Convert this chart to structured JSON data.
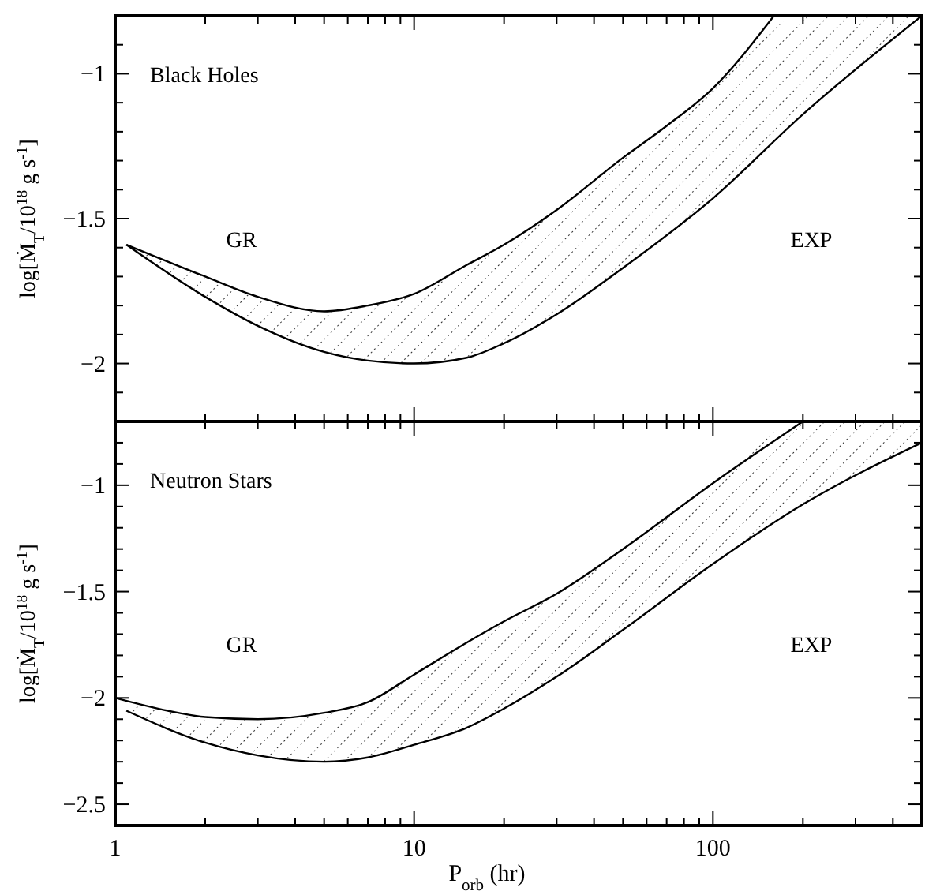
{
  "chart_data": [
    {
      "type": "line",
      "title": "Black Holes",
      "ylabel": "log[Ṁ$_{T}$/10$^{18}$ g s$^{-1}$]",
      "log": "x",
      "xlim": [
        1,
        500
      ],
      "ylim": [
        -2.2,
        -0.8
      ],
      "xticks": [
        1,
        {
          "value": 2,
          "label": null
        },
        {
          "value": 3,
          "label": null
        },
        {
          "value": 4,
          "label": null
        },
        {
          "value": 5,
          "label": null
        },
        {
          "value": 6,
          "label": null
        },
        {
          "value": 7,
          "label": null
        },
        {
          "value": 8,
          "label": null
        },
        {
          "value": 9,
          "label": null
        },
        10,
        {
          "value": 20,
          "label": null
        },
        {
          "value": 30,
          "label": null
        },
        {
          "value": 40,
          "label": null
        },
        {
          "value": 50,
          "label": null
        },
        {
          "value": 60,
          "label": null
        },
        {
          "value": 70,
          "label": null
        },
        {
          "value": 80,
          "label": null
        },
        {
          "value": 90,
          "label": null
        },
        100,
        {
          "value": 200,
          "label": null
        },
        {
          "value": 300,
          "label": null
        },
        {
          "value": 400,
          "label": null
        },
        {
          "value": 500,
          "label": null
        }
      ],
      "yticks": [
        {
          "value": -2.1,
          "label": null
        },
        -2,
        {
          "value": -1.9,
          "label": null
        },
        {
          "value": -1.8,
          "label": null
        },
        {
          "value": -1.7,
          "label": null
        },
        {
          "value": -1.6,
          "label": null
        },
        -1.5,
        {
          "value": -1.4,
          "label": null
        },
        {
          "value": -1.3,
          "label": null
        },
        {
          "value": -1.2,
          "label": null
        },
        {
          "value": -1.1,
          "label": null
        },
        -1,
        {
          "value": -0.9,
          "label": null
        }
      ],
      "tick_labels": "y",
      "line_style": "solid",
      "marker": "none",
      "annotations": [
        "GR",
        "EXP"
      ],
      "series": [
        {
          "color": "#000000",
          "x": [
            1.09,
            2,
            3,
            5,
            7,
            10,
            15,
            20,
            30,
            50,
            70,
            100,
            160
          ],
          "values": [
            -1.59,
            -1.7,
            -1.77,
            -1.82,
            -1.8,
            -1.76,
            -1.66,
            -1.59,
            -1.47,
            -1.29,
            -1.18,
            -1.05,
            -0.8
          ]
        },
        {
          "color": "#000000",
          "x": [
            1.09,
            2,
            3,
            5,
            7,
            10,
            15,
            20,
            30,
            50,
            100,
            200,
            500
          ],
          "values": [
            -1.59,
            -1.77,
            -1.87,
            -1.96,
            -1.99,
            -2.0,
            -1.98,
            -1.93,
            -1.83,
            -1.67,
            -1.43,
            -1.14,
            -0.8
          ],
          "lower": [
            -1.59,
            -1.77,
            -1.87,
            -1.96,
            -1.99,
            -2.0,
            -1.98,
            -1.93,
            -1.83,
            -1.67,
            -1.43,
            -1.14,
            -0.8
          ],
          "upper": [
            -1.59,
            -1.7,
            -1.77,
            -1.82,
            -1.8,
            -1.76,
            -1.66,
            -1.59,
            -1.47,
            -1.29,
            -1.05,
            -0.8,
            -0.8
          ]
        }
      ]
    },
    {
      "type": "line",
      "title": "Neutron Stars",
      "xlabel": "P$_{orb}$ (hr)",
      "ylabel": "log[Ṁ$_{T}$/10$^{18}$ g s$^{-1}$]",
      "log": "x",
      "xlim": [
        1,
        500
      ],
      "ylim": [
        -2.6,
        -0.7
      ],
      "xticks": [
        1,
        {
          "value": 2,
          "label": null
        },
        {
          "value": 3,
          "label": null
        },
        {
          "value": 4,
          "label": null
        },
        {
          "value": 5,
          "label": null
        },
        {
          "value": 6,
          "label": null
        },
        {
          "value": 7,
          "label": null
        },
        {
          "value": 8,
          "label": null
        },
        {
          "value": 9,
          "label": null
        },
        10,
        {
          "value": 20,
          "label": null
        },
        {
          "value": 30,
          "label": null
        },
        {
          "value": 40,
          "label": null
        },
        {
          "value": 50,
          "label": null
        },
        {
          "value": 60,
          "label": null
        },
        {
          "value": 70,
          "label": null
        },
        {
          "value": 80,
          "label": null
        },
        {
          "value": 90,
          "label": null
        },
        100,
        {
          "value": 200,
          "label": null
        },
        {
          "value": 300,
          "label": null
        },
        {
          "value": 400,
          "label": null
        },
        {
          "value": 500,
          "label": null
        }
      ],
      "yticks": [
        -2.5,
        {
          "value": -2.4,
          "label": null
        },
        {
          "value": -2.3,
          "label": null
        },
        {
          "value": -2.2,
          "label": null
        },
        {
          "value": -2.1,
          "label": null
        },
        -2,
        {
          "value": -1.9,
          "label": null
        },
        {
          "value": -1.8,
          "label": null
        },
        {
          "value": -1.7,
          "label": null
        },
        {
          "value": -1.6,
          "label": null
        },
        -1.5,
        {
          "value": -1.4,
          "label": null
        },
        {
          "value": -1.3,
          "label": null
        },
        {
          "value": -1.2,
          "label": null
        },
        {
          "value": -1.1,
          "label": null
        },
        -1,
        {
          "value": -0.9,
          "label": null
        },
        {
          "value": -0.8,
          "label": null
        }
      ],
      "line_style": "solid",
      "marker": "none",
      "annotations": [
        "GR",
        "EXP"
      ],
      "series": [
        {
          "color": "#000000",
          "x": [
            1.0,
            1.5,
            2,
            3,
            5,
            7,
            10,
            15,
            20,
            30,
            50,
            100,
            200
          ],
          "values": [
            -2.0,
            -2.06,
            -2.09,
            -2.1,
            -2.07,
            -2.02,
            -1.89,
            -1.74,
            -1.64,
            -1.51,
            -1.3,
            -0.99,
            -0.7
          ]
        },
        {
          "color": "#000000",
          "x": [
            1.09,
            2,
            3,
            5,
            7,
            10,
            15,
            20,
            30,
            50,
            100,
            200,
            500
          ],
          "values": [
            -2.06,
            -2.21,
            -2.27,
            -2.3,
            -2.28,
            -2.22,
            -2.14,
            -2.05,
            -1.9,
            -1.68,
            -1.37,
            -1.09,
            -0.8
          ],
          "lower": [
            -2.06,
            -2.21,
            -2.27,
            -2.3,
            -2.28,
            -2.22,
            -2.14,
            -2.05,
            -1.9,
            -1.68,
            -1.37,
            -1.09,
            -0.8
          ],
          "upper": [
            -2.01,
            -2.09,
            -2.1,
            -2.07,
            -2.02,
            -1.89,
            -1.74,
            -1.64,
            -1.51,
            -1.3,
            -0.99,
            -0.7,
            -0.7
          ]
        }
      ]
    }
  ]
}
